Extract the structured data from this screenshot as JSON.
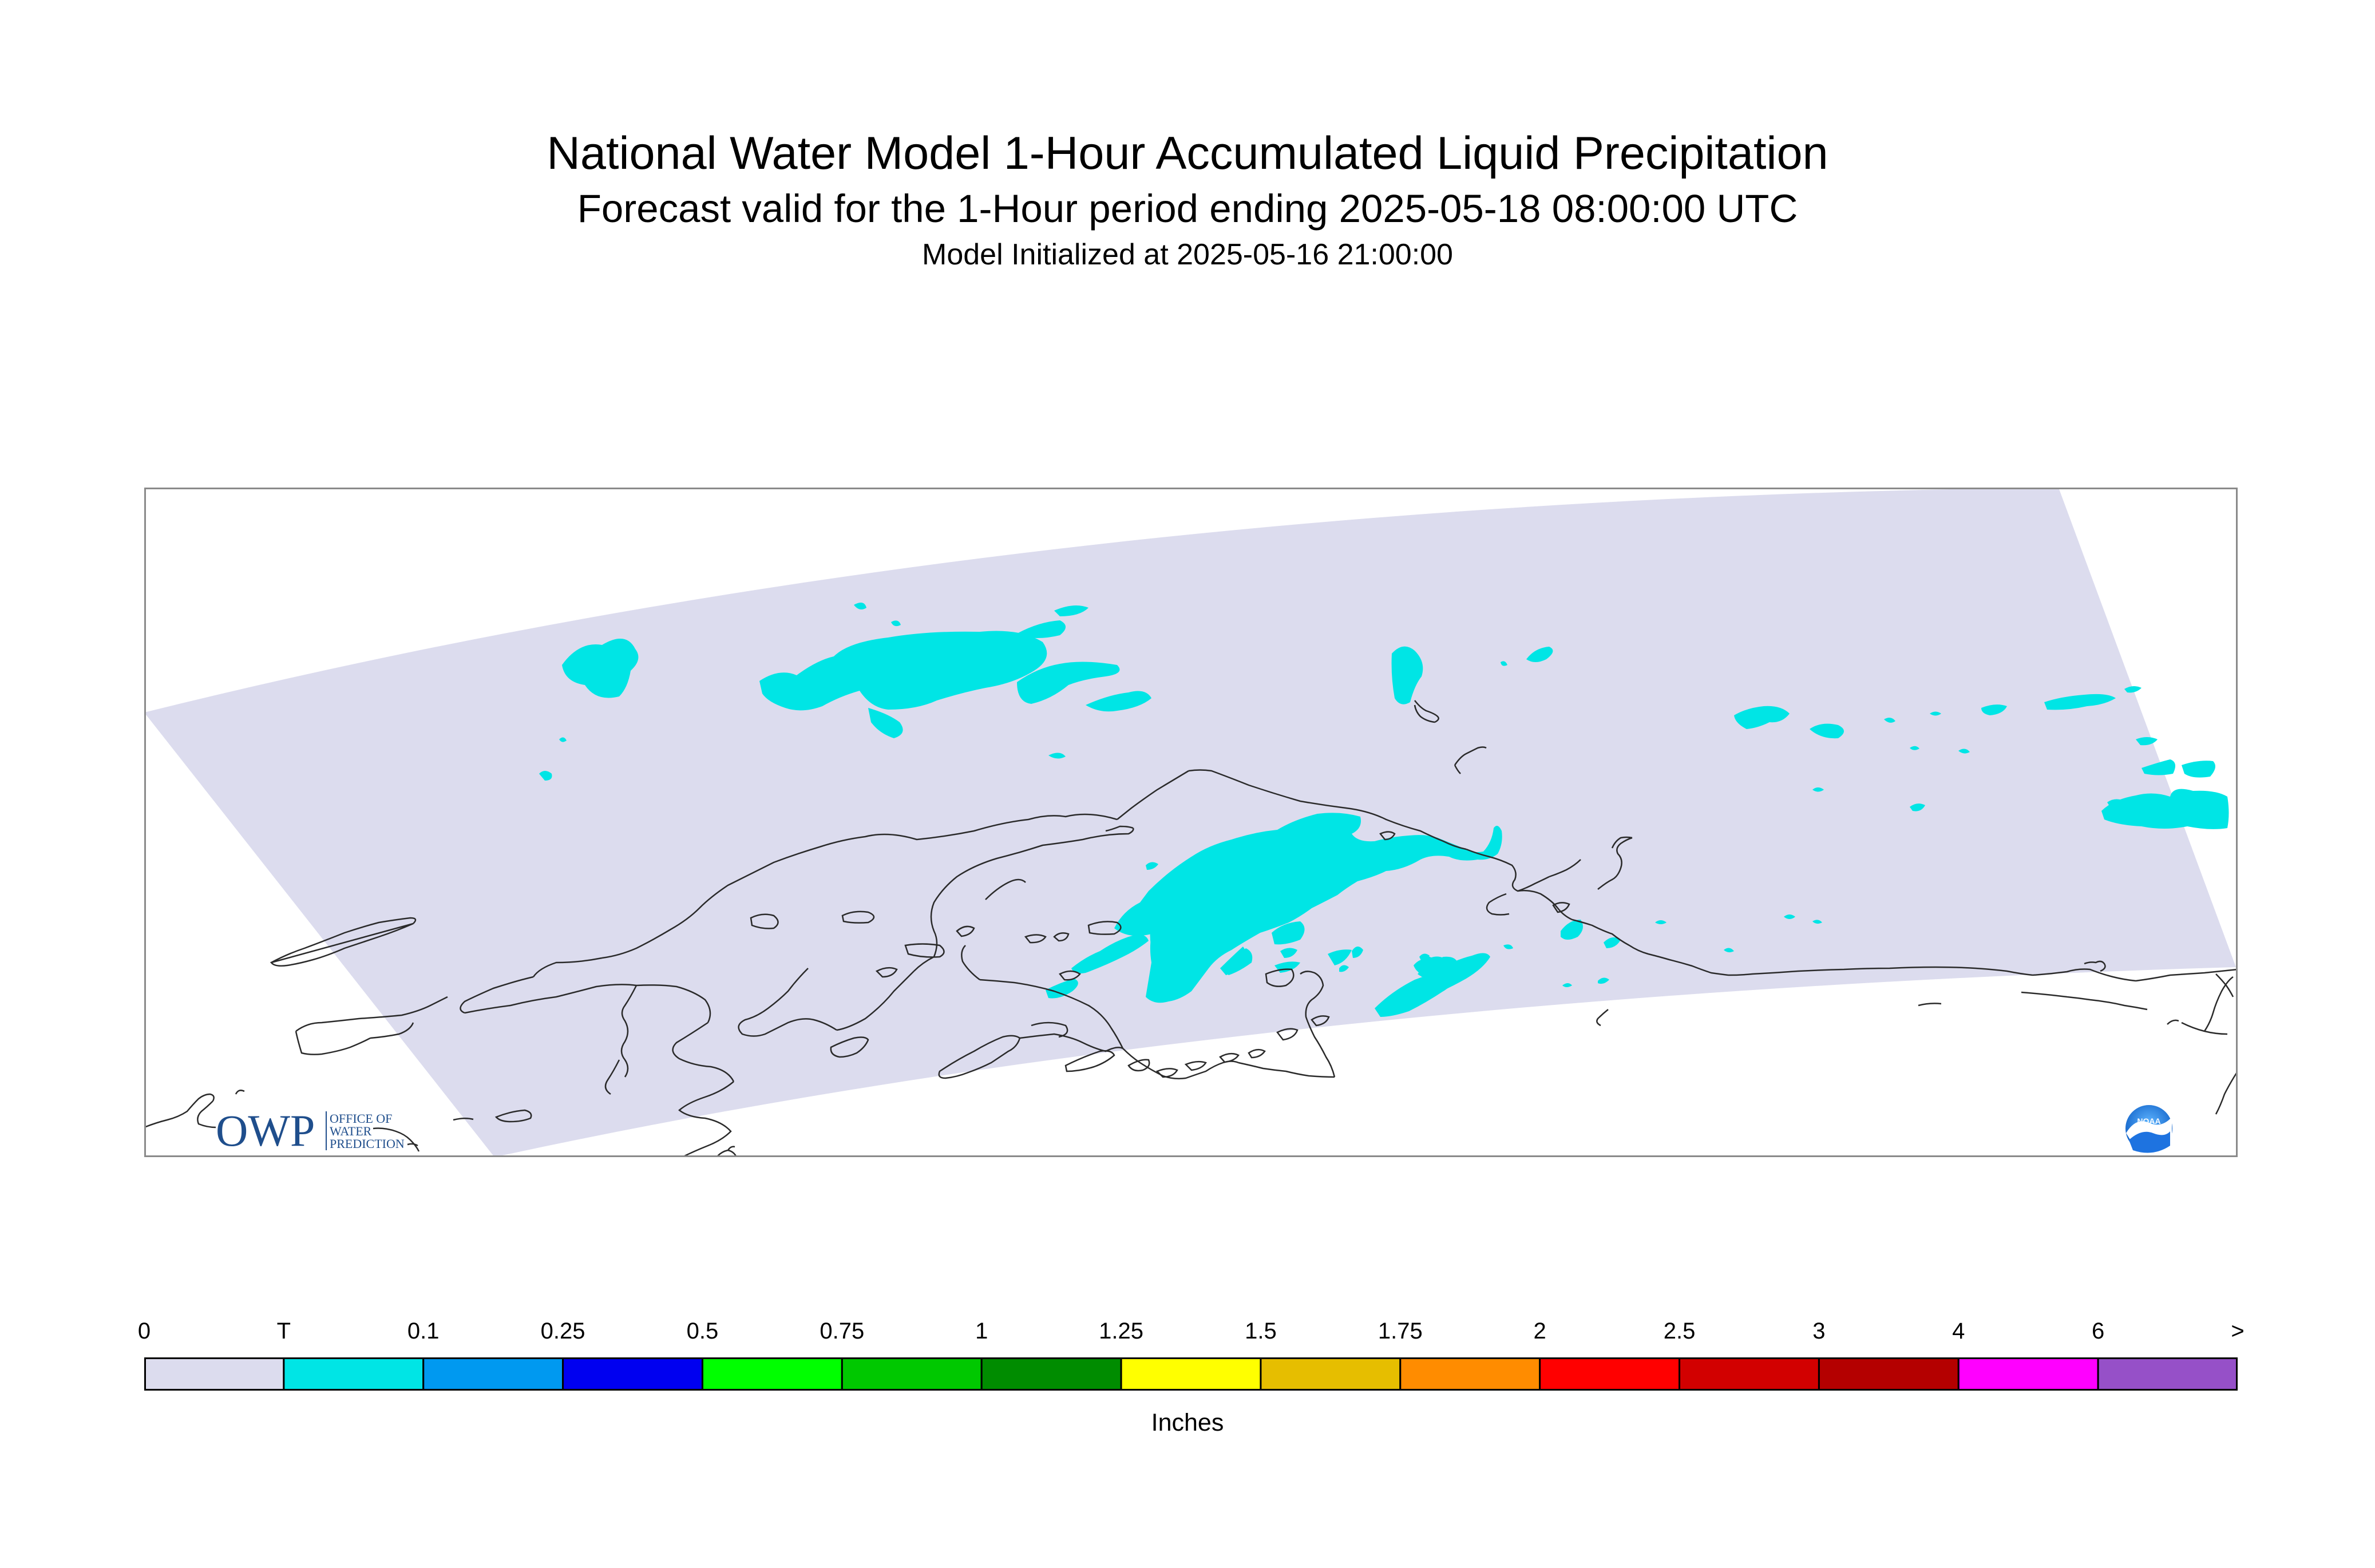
{
  "header": {
    "title": "National Water Model 1-Hour Accumulated Liquid Precipitation",
    "subtitle": "Forecast valid for the 1-Hour period ending 2025-05-18 08:00:00 UTC",
    "init": "Model Initialized at 2025-05-16 21:00:00"
  },
  "logos": {
    "owp_letters": "OWP",
    "owp_text": [
      "OFFICE OF",
      "WATER",
      "PREDICTION"
    ],
    "noaa_text": "NOAA"
  },
  "colors": {
    "domain_fill": "#dcdcee",
    "precip_trace": "#00e5e5",
    "coastline": "#2a2a2a",
    "frame": "#8a8a8a",
    "owp_blue": "#1f4e8c"
  },
  "legend": {
    "units": "Inches",
    "tick_labels": [
      "0",
      "T",
      "0.1",
      "0.25",
      "0.5",
      "0.75",
      "1",
      "1.25",
      "1.5",
      "1.75",
      "2",
      "2.5",
      "3",
      "4",
      "6",
      ">"
    ],
    "bins": [
      {
        "color": "#dcdcee"
      },
      {
        "color": "#00e5e5"
      },
      {
        "color": "#0099f0"
      },
      {
        "color": "#0000f0"
      },
      {
        "color": "#00ff00"
      },
      {
        "color": "#00c800"
      },
      {
        "color": "#008c00"
      },
      {
        "color": "#ffff00"
      },
      {
        "color": "#e6be00"
      },
      {
        "color": "#ff8c00"
      },
      {
        "color": "#ff0000"
      },
      {
        "color": "#d20000"
      },
      {
        "color": "#b40000"
      },
      {
        "color": "#ff00ff"
      },
      {
        "color": "#9650c8"
      }
    ]
  }
}
